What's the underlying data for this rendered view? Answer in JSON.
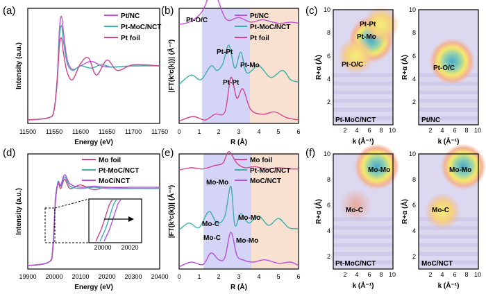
{
  "colors": {
    "pt_nc": "#c44fd6",
    "pt_moc_nct": "#3ab0a6",
    "pt_foil": "#d1458c",
    "mo_foil": "#d1458c",
    "moc_nct": "#b44ee0",
    "band_blue": "#c9cbf4",
    "band_peach": "#f8dac7"
  },
  "panels": {
    "a": {
      "label": "(a)",
      "xlabel": "Energy (eV)",
      "ylabel": "Intensity (a.u.)"
    },
    "b": {
      "label": "(b)",
      "xlabel": "R (Å)",
      "ylabel": "|FT(k³c(k))| (Å⁻³)",
      "ann": {
        "pt_oc": "Pt-O/C",
        "pt_pt_1": "Pt-Pt",
        "pt_mo": "Pt-Mo",
        "pt_pt_2": "Pt-Pt"
      }
    },
    "c": {
      "label": "(c)",
      "xlabel": "k (Å⁻¹)",
      "ylabel": "R+α (Å)",
      "left": {
        "name": "Pt-MoC/NCT",
        "ann": [
          "Pt-Pt",
          "Pt-Mo",
          "Pt-O/C"
        ]
      },
      "right": {
        "name": "Pt/NC",
        "ann": [
          "Pt-O/C"
        ]
      }
    },
    "d": {
      "label": "(d)",
      "xlabel": "Energy (eV)",
      "ylabel": "Intensity (a.u.)"
    },
    "e": {
      "label": "(e)",
      "xlabel": "R (Å)",
      "ylabel": "|FT(k³c(k))| (Å⁻³)",
      "ann": {
        "mo_mo_top": "Mo-Mo",
        "mo_c_mid": "Mo-C",
        "mo_mo_mid": "Mo-Mo",
        "mo_c_bot": "Mo-C",
        "mo_mo_bot": "Mo-Mo"
      }
    },
    "f": {
      "label": "(f)",
      "xlabel": "k (Å⁻¹)",
      "ylabel": "R+α (Å)",
      "left": {
        "name": "Pt-MoC/NCT",
        "ann": [
          "Mo-Mo",
          "Mo-C"
        ]
      },
      "right": {
        "name": "MoC/NCT",
        "ann": [
          "Mo-Mo",
          "Mo-C"
        ]
      }
    }
  },
  "chart_data": [
    {
      "type": "line",
      "panel": "a",
      "xlim": [
        11500,
        11750
      ],
      "x_ticks": [
        "11500",
        "11550",
        "11600",
        "11650",
        "11700",
        "11750"
      ],
      "xlabel": "Energy (eV)",
      "ylabel": "Intensity (a.u.)",
      "legend_position": "top-right",
      "series": [
        {
          "name": "Pt/NC",
          "x": [
            11500,
            11540,
            11550,
            11556,
            11560,
            11564,
            11568,
            11575,
            11585,
            11600,
            11620,
            11640,
            11660,
            11700,
            11750
          ],
          "y": [
            0.03,
            0.05,
            0.12,
            0.42,
            0.82,
            0.93,
            0.78,
            0.55,
            0.47,
            0.5,
            0.54,
            0.5,
            0.49,
            0.5,
            0.5
          ]
        },
        {
          "name": "Pt-MoC/NCT",
          "x": [
            11500,
            11540,
            11550,
            11556,
            11560,
            11564,
            11568,
            11575,
            11585,
            11600,
            11620,
            11640,
            11660,
            11700,
            11750
          ],
          "y": [
            0.03,
            0.05,
            0.12,
            0.4,
            0.75,
            0.85,
            0.7,
            0.52,
            0.46,
            0.5,
            0.48,
            0.51,
            0.49,
            0.5,
            0.5
          ]
        },
        {
          "name": "Pt foil",
          "x": [
            11500,
            11540,
            11550,
            11556,
            11560,
            11564,
            11568,
            11575,
            11585,
            11600,
            11615,
            11630,
            11650,
            11670,
            11700,
            11750
          ],
          "y": [
            0.03,
            0.05,
            0.12,
            0.38,
            0.68,
            0.74,
            0.6,
            0.44,
            0.38,
            0.52,
            0.57,
            0.42,
            0.55,
            0.46,
            0.51,
            0.5
          ]
        }
      ]
    },
    {
      "type": "line",
      "panel": "b",
      "xlim": [
        0,
        6
      ],
      "x_ticks": [
        "0",
        "1",
        "2",
        "3",
        "4",
        "5",
        "6"
      ],
      "xlabel": "R (Å)",
      "ylabel": "|FT(k³c(k))| (Å⁻³)",
      "legend_position": "top-right",
      "bands": [
        [
          1.2,
          2.35
        ],
        [
          2.35,
          3.5
        ]
      ],
      "series": [
        {
          "name": "Pt/NC",
          "x": [
            0,
            0.5,
            1.0,
            1.3,
            1.7,
            2.0,
            2.4,
            3.0,
            3.6,
            4.2,
            5.0,
            5.6,
            6.0
          ],
          "y": [
            0.86,
            0.88,
            0.94,
            1.02,
            1.2,
            1.05,
            0.9,
            0.92,
            0.88,
            0.9,
            0.87,
            0.88,
            0.87
          ]
        },
        {
          "name": "Pt-MoC/NCT",
          "x": [
            0,
            0.6,
            1.1,
            1.6,
            1.9,
            2.2,
            2.5,
            2.8,
            3.1,
            3.4,
            4.0,
            4.6,
            5.2,
            5.6,
            6.0
          ],
          "y": [
            0.34,
            0.42,
            0.38,
            0.5,
            0.46,
            0.52,
            0.68,
            0.48,
            0.62,
            0.44,
            0.5,
            0.4,
            0.46,
            0.38,
            0.36
          ]
        },
        {
          "name": "Pt foil",
          "x": [
            0,
            0.7,
            1.3,
            1.8,
            2.3,
            2.6,
            2.9,
            3.2,
            3.6,
            4.2,
            4.8,
            5.4,
            6.0
          ],
          "y": [
            0.02,
            0.06,
            0.03,
            0.08,
            0.1,
            0.4,
            0.22,
            0.3,
            0.12,
            0.08,
            0.1,
            0.05,
            0.03
          ]
        }
      ]
    },
    {
      "type": "heatmap",
      "panel": "c",
      "xlim": [
        0,
        10
      ],
      "ylim": [
        0,
        10
      ],
      "x_ticks": [
        "2",
        "4",
        "6",
        "8",
        "10"
      ],
      "y_ticks": [
        "2",
        "4",
        "6",
        "8",
        "10"
      ],
      "xlabel": "k (Å⁻¹)",
      "ylabel": "R+α (Å)",
      "maps": [
        {
          "name": "Pt-MoC/NCT",
          "peaks": [
            {
              "k": 6.4,
              "r": 7.4,
              "amp": 1.0
            },
            {
              "k": 8.0,
              "r": 8.7,
              "amp": 0.8
            },
            {
              "k": 3.8,
              "r": 6.0,
              "amp": 0.55
            }
          ]
        },
        {
          "name": "Pt/NC",
          "peaks": [
            {
              "k": 5.6,
              "r": 5.5,
              "amp": 1.0
            }
          ]
        }
      ]
    },
    {
      "type": "line",
      "panel": "d",
      "xlim": [
        19900,
        20400
      ],
      "x_ticks": [
        "19900",
        "20000",
        "20100",
        "20200",
        "20300",
        "20400"
      ],
      "inset_x_ticks": [
        "20000",
        "20020"
      ],
      "xlabel": "Energy (eV)",
      "ylabel": "Intensity (a.u.)",
      "legend_position": "top-right",
      "series": [
        {
          "name": "Mo foil",
          "x": [
            19900,
            19980,
            19995,
            20005,
            20015,
            20025,
            20040,
            20060,
            20100,
            20150,
            20200,
            20300,
            20400
          ],
          "y": [
            0.03,
            0.06,
            0.2,
            0.62,
            0.74,
            0.7,
            0.78,
            0.7,
            0.73,
            0.69,
            0.71,
            0.7,
            0.7
          ]
        },
        {
          "name": "Pt-MoC/NCT",
          "x": [
            19900,
            19980,
            19995,
            20005,
            20015,
            20025,
            20040,
            20060,
            20100,
            20150,
            20200,
            20300,
            20400
          ],
          "y": [
            0.03,
            0.06,
            0.18,
            0.6,
            0.76,
            0.72,
            0.8,
            0.72,
            0.7,
            0.71,
            0.7,
            0.7,
            0.7
          ]
        },
        {
          "name": "MoC/NCT",
          "x": [
            19900,
            19980,
            19995,
            20005,
            20015,
            20025,
            20040,
            20060,
            20100,
            20150,
            20200,
            20300,
            20400
          ],
          "y": [
            0.03,
            0.06,
            0.17,
            0.58,
            0.75,
            0.73,
            0.82,
            0.74,
            0.71,
            0.72,
            0.71,
            0.71,
            0.71
          ]
        }
      ]
    },
    {
      "type": "line",
      "panel": "e",
      "xlim": [
        0,
        6
      ],
      "x_ticks": [
        "0",
        "1",
        "2",
        "3",
        "4",
        "5",
        "6"
      ],
      "xlabel": "R (Å)",
      "ylabel": "|FT(k³c(k))| (Å⁻³)",
      "legend_position": "top-right",
      "bands": [
        [
          1.2,
          2.4
        ],
        [
          2.4,
          3.5
        ]
      ],
      "series": [
        {
          "name": "Mo foil",
          "x": [
            0,
            0.6,
            1.2,
            1.8,
            2.2,
            2.5,
            2.9,
            3.3,
            3.8,
            4.4,
            5.0,
            5.6,
            6.0
          ],
          "y": [
            0.86,
            0.88,
            0.87,
            0.9,
            0.92,
            1.02,
            0.92,
            0.88,
            0.89,
            0.87,
            0.88,
            0.87,
            0.87
          ]
        },
        {
          "name": "Pt-MoC/NCT",
          "x": [
            0,
            0.5,
            1.0,
            1.5,
            1.9,
            2.3,
            2.6,
            2.8,
            3.1,
            3.5,
            4.0,
            4.5,
            5.0,
            5.5,
            6.0
          ],
          "y": [
            0.34,
            0.4,
            0.36,
            0.5,
            0.4,
            0.46,
            0.72,
            0.38,
            0.48,
            0.4,
            0.46,
            0.38,
            0.44,
            0.36,
            0.35
          ]
        },
        {
          "name": "MoC/NCT",
          "x": [
            0,
            0.6,
            1.2,
            1.6,
            2.0,
            2.3,
            2.6,
            2.9,
            3.2,
            3.7,
            4.3,
            5.0,
            5.6,
            6.0
          ],
          "y": [
            0.02,
            0.06,
            0.04,
            0.14,
            0.08,
            0.1,
            0.32,
            0.12,
            0.08,
            0.06,
            0.08,
            0.05,
            0.06,
            0.03
          ]
        }
      ]
    },
    {
      "type": "heatmap",
      "panel": "f",
      "xlim": [
        0,
        10
      ],
      "ylim": [
        1,
        10
      ],
      "x_ticks": [
        "2",
        "4",
        "6",
        "8",
        "10"
      ],
      "y_ticks": [
        "2",
        "4",
        "6",
        "8",
        "10"
      ],
      "xlabel": "k (Å⁻¹)",
      "ylabel": "R+α (Å)",
      "maps": [
        {
          "name": "Pt-MoC/NCT",
          "peaks": [
            {
              "k": 7.3,
              "r": 9.0,
              "amp": 1.0
            },
            {
              "k": 3.8,
              "r": 6.0,
              "amp": 0.45
            }
          ]
        },
        {
          "name": "MoC/NCT",
          "peaks": [
            {
              "k": 7.5,
              "r": 9.0,
              "amp": 1.0
            },
            {
              "k": 4.0,
              "r": 5.5,
              "amp": 0.55
            }
          ]
        }
      ]
    }
  ]
}
